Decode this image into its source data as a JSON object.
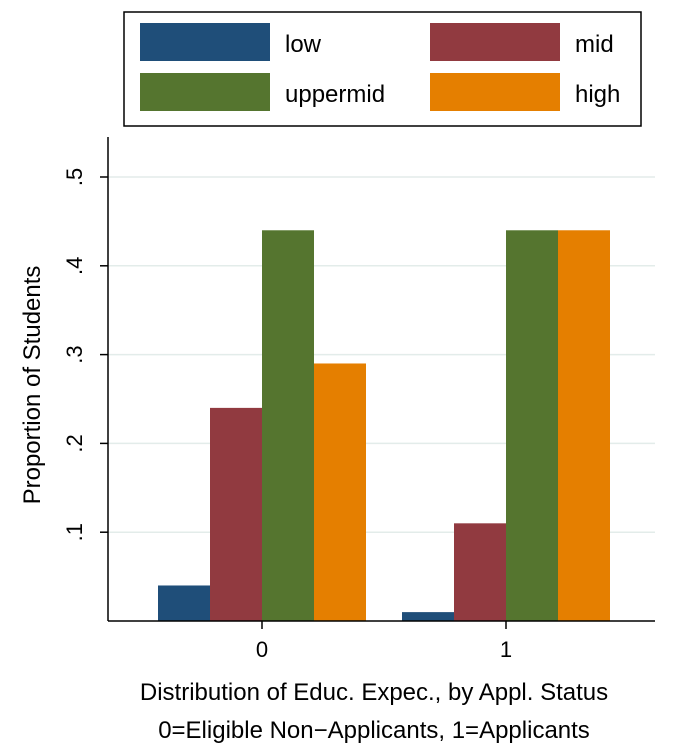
{
  "chart_data": {
    "type": "bar",
    "categories": [
      "0",
      "1"
    ],
    "series": [
      {
        "name": "low",
        "color": "#1f4e79",
        "values": [
          0.04,
          0.01
        ]
      },
      {
        "name": "mid",
        "color": "#913a40",
        "values": [
          0.24,
          0.11
        ]
      },
      {
        "name": "uppermid",
        "color": "#55752f",
        "values": [
          0.44,
          0.44
        ]
      },
      {
        "name": "high",
        "color": "#e57f00",
        "values": [
          0.29,
          0.44
        ]
      }
    ],
    "ylabel": "Proportion of Students",
    "xlabel_lines": [
      "Distribution of Educ. Expec., by Appl. Status",
      "0=Eligible Non−Applicants, 1=Applicants"
    ],
    "ylim": [
      0,
      0.5
    ],
    "yticks": [
      0.1,
      0.2,
      0.3,
      0.4,
      0.5
    ],
    "ytick_labels": [
      ".1",
      ".2",
      ".3",
      ".4",
      ".5"
    ],
    "grid": true,
    "grid_color": "#e3ecea",
    "legend_position": "top"
  }
}
